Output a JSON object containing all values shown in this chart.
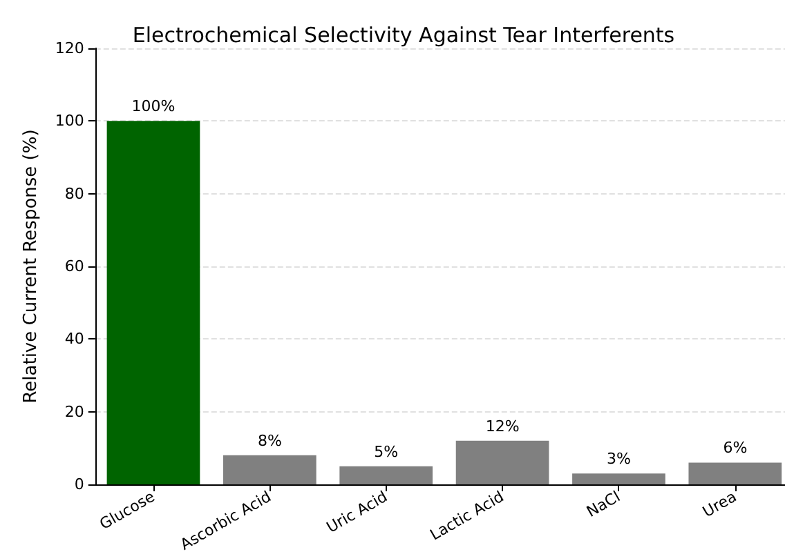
{
  "chart_data": {
    "type": "bar",
    "title": "Electrochemical Selectivity Against Tear Interferents",
    "ylabel": "Relative Current Response (%)",
    "categories": [
      "Glucose",
      "Ascorbic Acid",
      "Uric Acid",
      "Lactic Acid",
      "NaCl",
      "Urea"
    ],
    "values": [
      100,
      8,
      5,
      12,
      3,
      6
    ],
    "colors": [
      "#006400",
      "#808080",
      "#808080",
      "#808080",
      "#808080",
      "#808080"
    ],
    "value_labels": [
      "100%",
      "8%",
      "5%",
      "12%",
      "3%",
      "6%"
    ],
    "ylim": [
      0,
      120
    ],
    "yticks": [
      0,
      20,
      40,
      60,
      80,
      100,
      120
    ],
    "grid": "y"
  }
}
